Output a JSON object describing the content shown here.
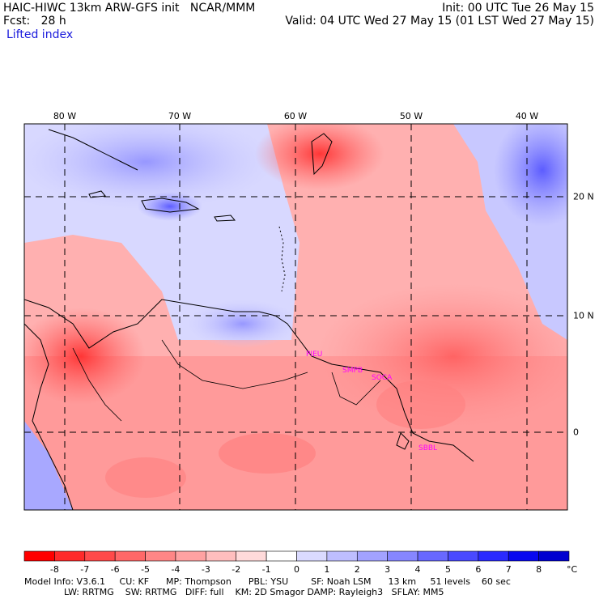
{
  "header": {
    "title_left": "HAIC-HIWC 13km ARW-GFS init   NCAR/MMM",
    "init": "Init: 00 UTC Tue 26 May 15",
    "fcst": "Fcst:   28 h",
    "valid": "Valid: 04 UTC Wed 27 May 15 (01 LST Wed 27 May 15)",
    "field": "Lifted index"
  },
  "map": {
    "lon_labels": [
      "80 W",
      "70 W",
      "60 W",
      "50 W",
      "40 W"
    ],
    "lat_labels": [
      "20 N",
      "10 N",
      "0"
    ],
    "stations": [
      "PIEU",
      "SMPB",
      "SOCA",
      "SBBL"
    ],
    "station_color": "#ff00ff",
    "colors": {
      "warm": "#ff5a5a",
      "neutral": "#ffffff",
      "cool": "#5a5aff"
    }
  },
  "colorbar": {
    "labels": [
      "-8",
      "-7",
      "-6",
      "-5",
      "-4",
      "-3",
      "-2",
      "-1",
      "0",
      "1",
      "2",
      "3",
      "4",
      "5",
      "6",
      "7",
      "8"
    ],
    "unit": "°C",
    "colors": [
      "#ff0000",
      "#ff2a2a",
      "#ff4a4a",
      "#ff6868",
      "#ff8686",
      "#ffa2a2",
      "#ffbebe",
      "#ffdada",
      "#ffffff",
      "#dadaff",
      "#bebeff",
      "#a2a2ff",
      "#8686ff",
      "#6868ff",
      "#4a4aff",
      "#2a2aff",
      "#0808f0",
      "#0000d0"
    ]
  },
  "footer": {
    "line1": "Model Info: V3.6.1     CU: KF      MP: Thompson      PBL: YSU        SF: Noah LSM      13 km     51 levels    60 sec",
    "line2": "              LW: RRTMG    SW: RRTMG   DIFF: full    KM: 2D Smagor DAMP: Rayleigh3   SFLAY: MM5"
  }
}
